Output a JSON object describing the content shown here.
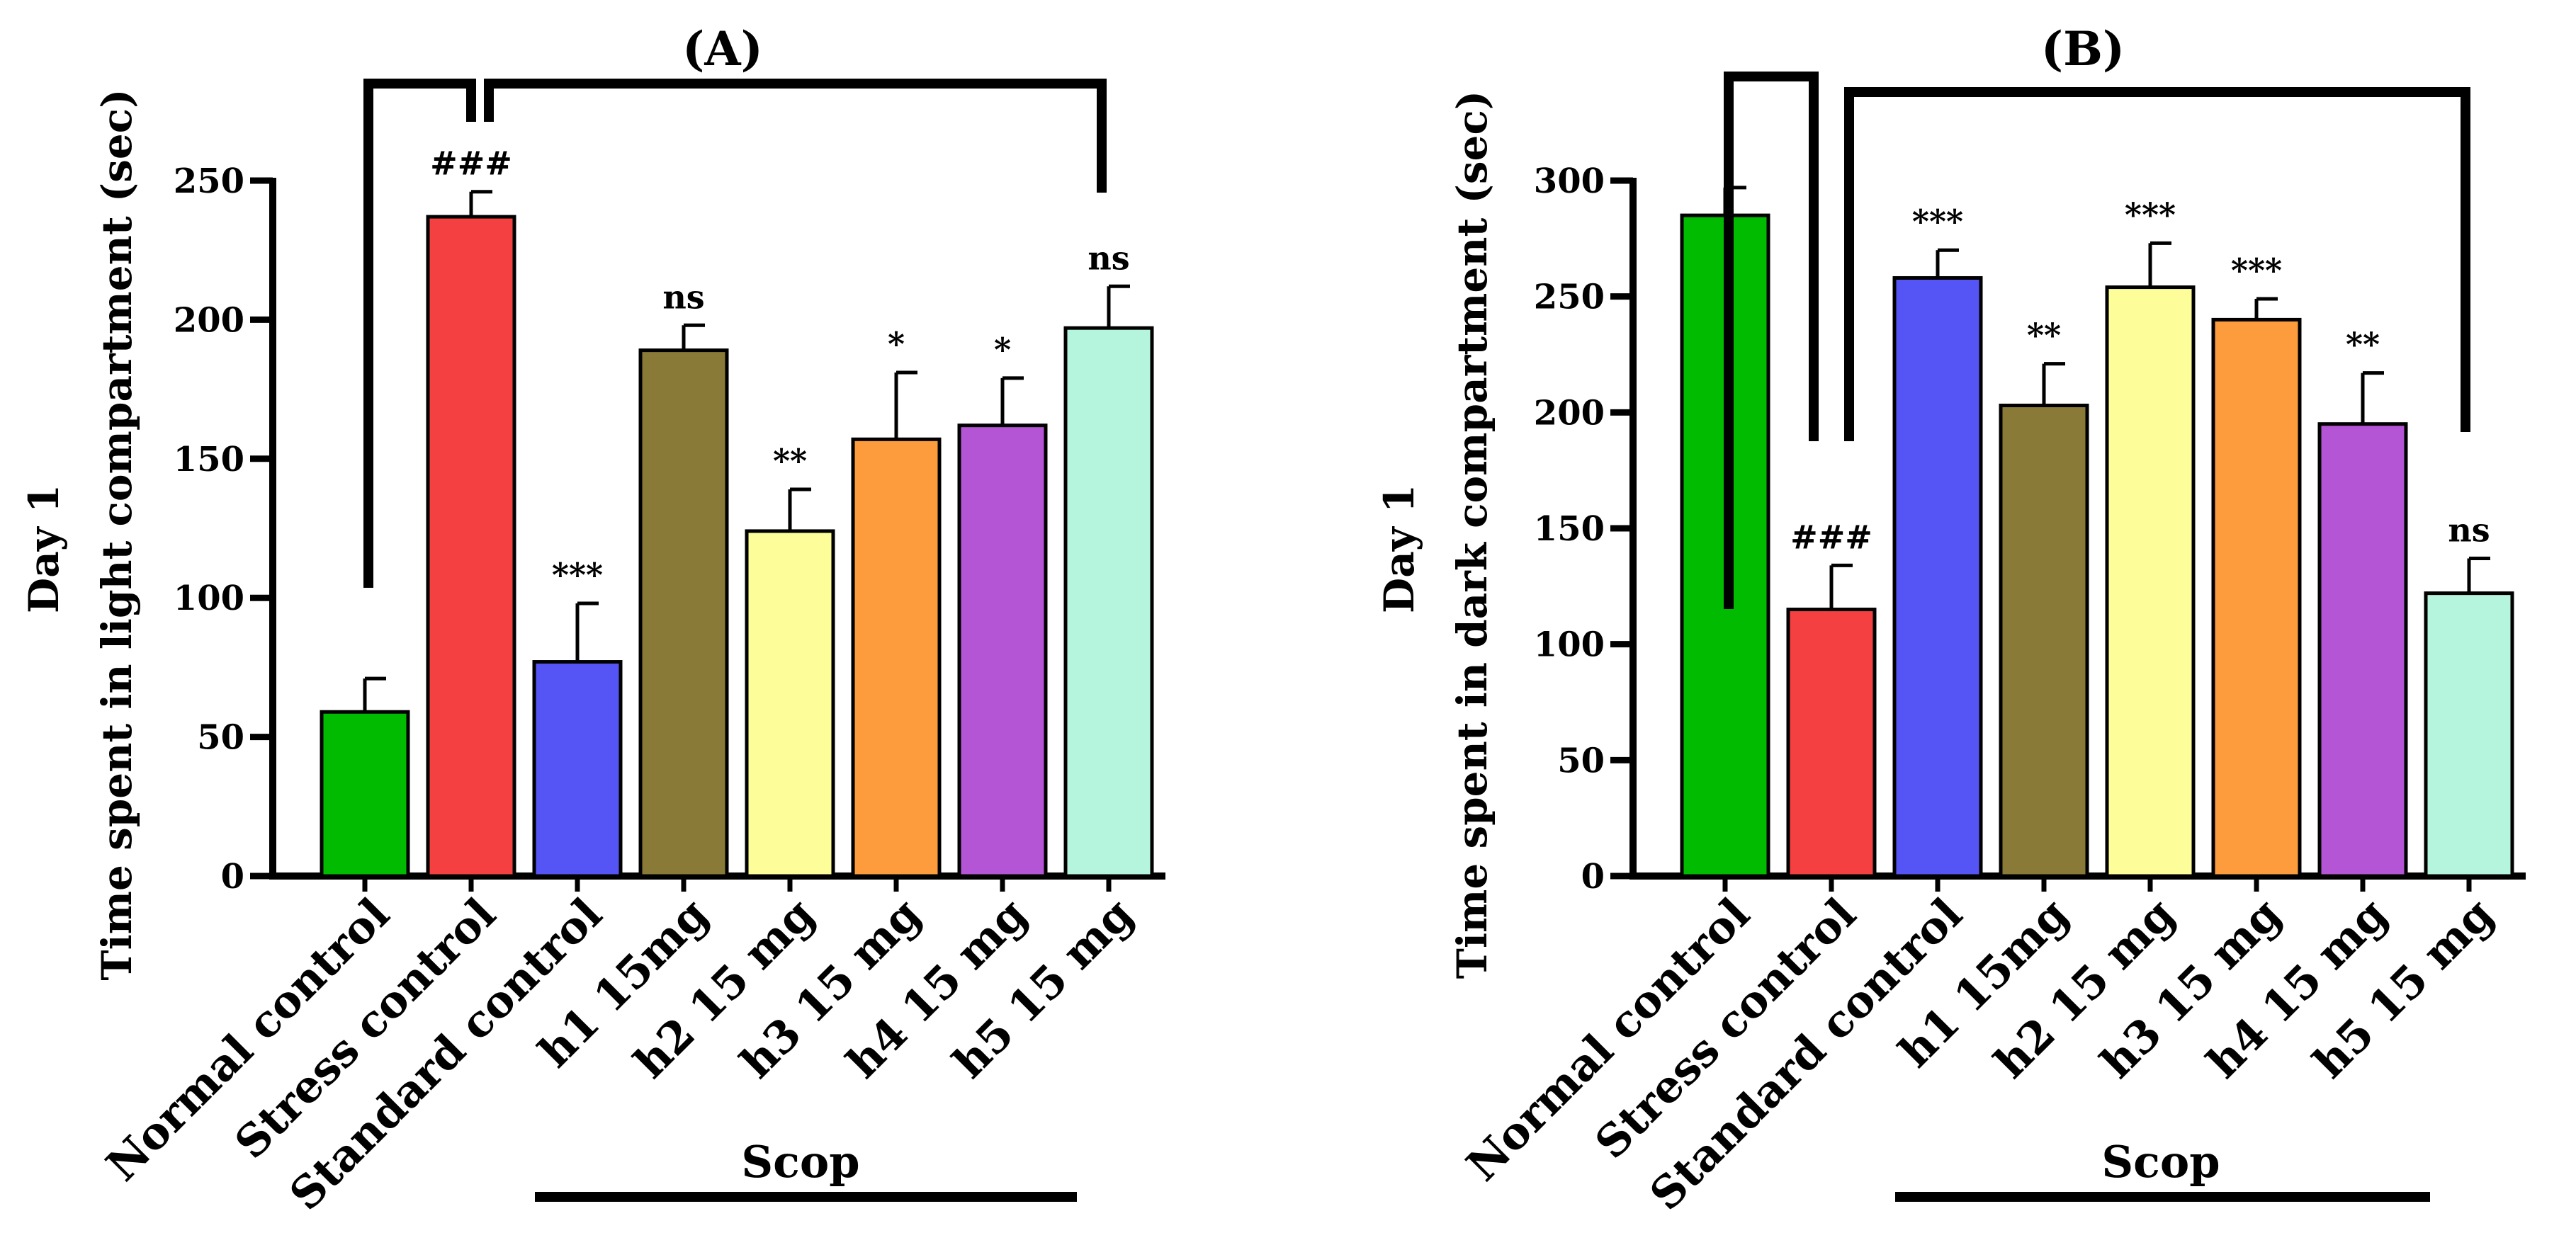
{
  "chart_data": [
    {
      "type": "bar",
      "title": "(A)",
      "ylabel_line1": "Day 1",
      "ylabel_line2": "Time spent in light compartment (sec)",
      "ylim": [
        0,
        250
      ],
      "yticks": [
        0,
        50,
        100,
        150,
        200,
        250
      ],
      "categories": [
        "Normal control",
        "Stress control",
        "Standard control",
        "h1 15mg",
        "h2 15 mg",
        "h3 15 mg",
        "h4 15 mg",
        "h5 15 mg"
      ],
      "values": [
        59,
        237,
        77,
        189,
        124,
        157,
        162,
        197
      ],
      "errors": [
        12,
        9,
        21,
        9,
        15,
        24,
        17,
        15
      ],
      "annotations": [
        "",
        "###",
        "***",
        "ns",
        "**",
        "*",
        "*",
        "ns"
      ],
      "group_label": "Scop"
    },
    {
      "type": "bar",
      "title": "(B)",
      "ylabel_line1": "Day 1",
      "ylabel_line2": "Time spent in dark compartment (sec)",
      "ylim": [
        0,
        300
      ],
      "yticks": [
        0,
        50,
        100,
        150,
        200,
        250,
        300
      ],
      "categories": [
        "Normal control",
        "Stress control",
        "Standard control",
        "h1 15mg",
        "h2 15 mg",
        "h3 15 mg",
        "h4 15 mg",
        "h5 15 mg"
      ],
      "values": [
        285,
        115,
        258,
        203,
        254,
        240,
        195,
        122
      ],
      "errors": [
        12,
        19,
        12,
        18,
        19,
        9,
        22,
        15
      ],
      "annotations": [
        "",
        "###",
        "***",
        "**",
        "***",
        "***",
        "**",
        "ns"
      ],
      "group_label": "Scop"
    }
  ],
  "colors": [
    "#00bb00",
    "#f44040",
    "#5555f5",
    "#8a7a38",
    "#fdfd9a",
    "#fd9c3c",
    "#b355d5",
    "#b5f5dd"
  ]
}
